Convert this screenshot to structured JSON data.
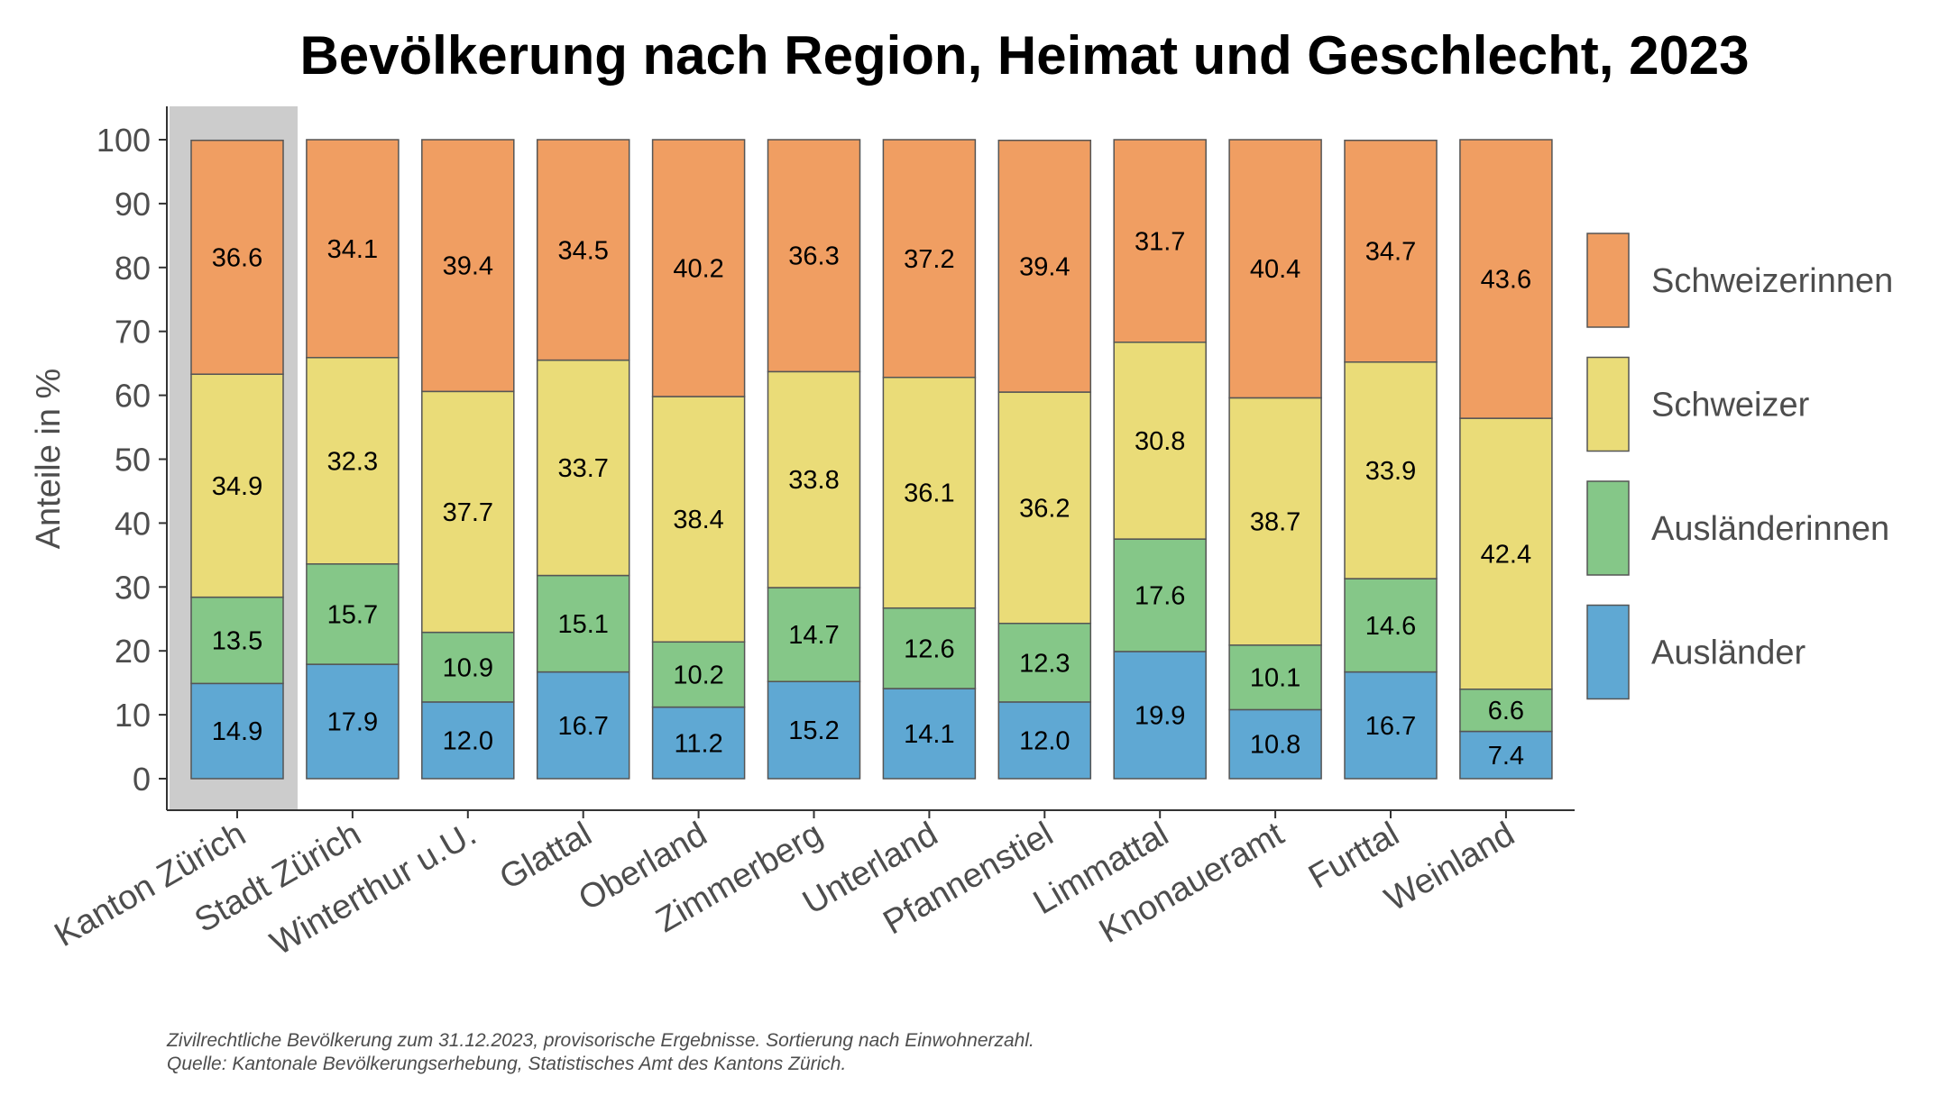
{
  "chart_data": {
    "type": "bar",
    "stacked": true,
    "title": "Bevölkerung nach Region, Heimat und Geschlecht, 2023",
    "xlabel": "",
    "ylabel": "Anteile in %",
    "ylim": [
      0,
      100
    ],
    "yticks": [
      0,
      10,
      20,
      30,
      40,
      50,
      60,
      70,
      80,
      90,
      100
    ],
    "grid": false,
    "legend_position": "right",
    "highlighted_category": "Kanton Zürich",
    "highlight_color": "#cccccc",
    "categories": [
      "Kanton Zürich",
      "Stadt Zürich",
      "Winterthur u.U.",
      "Glattal",
      "Oberland",
      "Zimmerberg",
      "Unterland",
      "Pfannenstiel",
      "Limmattal",
      "Knonaueramt",
      "Furttal",
      "Weinland"
    ],
    "series": [
      {
        "name": "Ausländer",
        "color": "#5fa8d3",
        "values": [
          14.9,
          17.9,
          12.0,
          16.7,
          11.2,
          15.2,
          14.1,
          12.0,
          19.9,
          10.8,
          16.7,
          7.4
        ]
      },
      {
        "name": "Ausländerinnen",
        "color": "#85c788",
        "values": [
          13.5,
          15.7,
          10.9,
          15.1,
          10.2,
          14.7,
          12.6,
          12.3,
          17.6,
          10.1,
          14.6,
          6.6
        ]
      },
      {
        "name": "Schweizer",
        "color": "#eadc78",
        "values": [
          34.9,
          32.3,
          37.7,
          33.7,
          38.4,
          33.8,
          36.1,
          36.2,
          30.8,
          38.7,
          33.9,
          42.4
        ]
      },
      {
        "name": "Schweizerinnen",
        "color": "#f09e62",
        "values": [
          36.6,
          34.1,
          39.4,
          34.5,
          40.2,
          36.3,
          37.2,
          39.4,
          31.7,
          40.4,
          34.7,
          43.6
        ]
      }
    ],
    "notes": [
      "Zivilrechtliche Bevölkerung zum 31.12.2023, provisorische Ergebnisse. Sortierung nach Einwohnerzahl.",
      "Quelle: Kantonale Bevölkerungserhebung, Statistisches Amt des Kantons Zürich."
    ]
  }
}
